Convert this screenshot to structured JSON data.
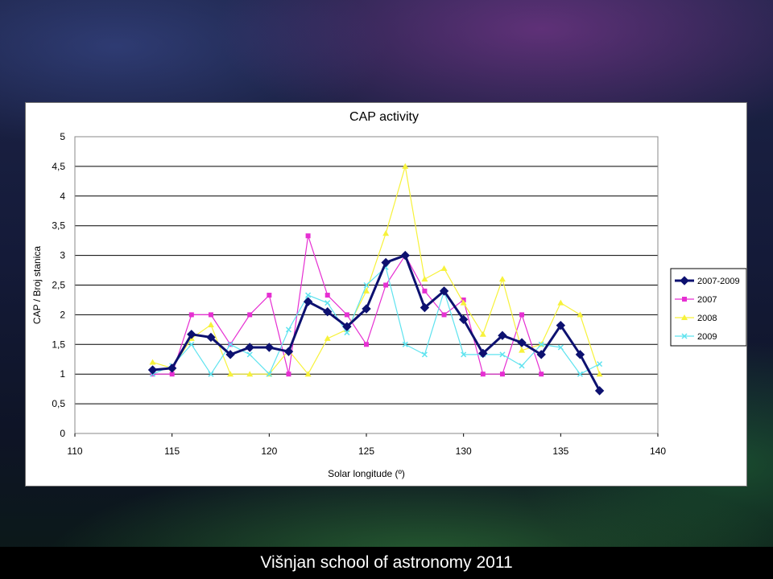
{
  "footer": {
    "text": "Višnjan school of astronomy 2011"
  },
  "colors": {
    "2007-2009": "#0d1170",
    "2007": "#e62fd2",
    "2008": "#f7f23a",
    "2009": "#5fe3ef"
  },
  "chart_data": {
    "type": "line",
    "title": "CAP activity",
    "xlabel": "Solar longitude (º)",
    "ylabel": "CAP / Broj stanica",
    "xlim": [
      110,
      140
    ],
    "ylim": [
      0,
      5
    ],
    "xticks": [
      110,
      115,
      120,
      125,
      130,
      135,
      140
    ],
    "yticks": [
      0,
      0.5,
      1,
      1.5,
      2,
      2.5,
      3,
      3.5,
      4,
      4.5,
      5
    ],
    "ytick_labels": [
      "0",
      "0,5",
      "1",
      "1,5",
      "2",
      "2,5",
      "3",
      "3,5",
      "4",
      "4,5",
      "5"
    ],
    "grid": "horizontal",
    "legend": "right",
    "series": [
      {
        "name": "2007-2009",
        "marker": "diamond",
        "x": [
          114,
          115,
          116,
          117,
          118,
          119,
          120,
          121,
          122,
          123,
          124,
          125,
          126,
          127,
          128,
          129,
          130,
          131,
          132,
          133,
          134,
          135,
          136,
          137
        ],
        "y": [
          1.07,
          1.1,
          1.67,
          1.62,
          1.33,
          1.45,
          1.45,
          1.38,
          2.22,
          2.05,
          1.8,
          2.1,
          2.88,
          3.0,
          2.12,
          2.4,
          1.92,
          1.35,
          1.65,
          1.53,
          1.33,
          1.82,
          1.33,
          0.72
        ]
      },
      {
        "name": "2007",
        "marker": "square",
        "x": [
          114,
          115,
          116,
          117,
          118,
          119,
          120,
          121,
          122,
          123,
          124,
          125,
          126,
          127,
          128,
          129,
          130,
          131,
          132,
          133,
          134
        ],
        "y": [
          1.0,
          1.0,
          2.0,
          2.0,
          1.5,
          2.0,
          2.33,
          1.0,
          3.33,
          2.33,
          2.0,
          1.5,
          2.5,
          3.0,
          2.4,
          2.0,
          2.25,
          1.0,
          1.0,
          2.0,
          1.0
        ]
      },
      {
        "name": "2008",
        "marker": "triangle",
        "x": [
          114,
          115,
          116,
          117,
          118,
          119,
          120,
          121,
          122,
          123,
          124,
          125,
          126,
          127,
          128,
          129,
          130,
          131,
          132,
          133,
          134,
          135,
          136,
          137
        ],
        "y": [
          1.2,
          1.1,
          1.6,
          1.83,
          1.0,
          1.0,
          1.0,
          1.4,
          1.0,
          1.6,
          1.75,
          2.4,
          3.37,
          4.5,
          2.6,
          2.78,
          2.2,
          1.67,
          2.6,
          1.4,
          1.5,
          2.2,
          2.0,
          1.0
        ]
      },
      {
        "name": "2009",
        "marker": "x",
        "x": [
          114,
          115,
          116,
          117,
          118,
          119,
          120,
          121,
          122,
          123,
          124,
          125,
          126,
          127,
          128,
          129,
          130,
          131,
          132,
          133,
          134,
          135,
          136,
          137
        ],
        "y": [
          1.0,
          1.14,
          1.5,
          1.0,
          1.5,
          1.33,
          1.0,
          1.75,
          2.33,
          2.2,
          1.7,
          2.5,
          2.8,
          1.5,
          1.33,
          2.4,
          1.33,
          1.33,
          1.33,
          1.14,
          1.5,
          1.45,
          1.0,
          1.17
        ]
      }
    ]
  }
}
